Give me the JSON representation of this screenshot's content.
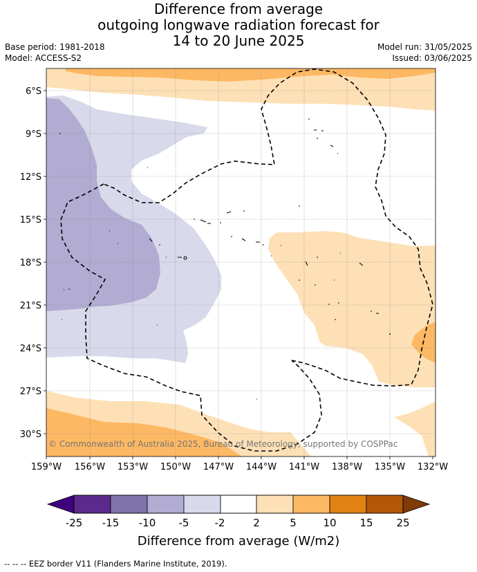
{
  "title": {
    "line1": "Difference from average",
    "line2": "outgoing longwave radiation forecast for",
    "line3": "14 to 20 June 2025"
  },
  "meta": {
    "base_period": "Base period: 1981-2018",
    "model": "Model: ACCESS-S2",
    "model_run": "Model run: 31/05/2025",
    "issued": "Issued: 03/06/2025"
  },
  "map": {
    "lon_ticks": [
      "159°W",
      "156°W",
      "153°W",
      "150°W",
      "147°W",
      "144°W",
      "141°W",
      "138°W",
      "135°W",
      "132°W"
    ],
    "lat_ticks": [
      "6°S",
      "9°S",
      "12°S",
      "15°S",
      "18°S",
      "21°S",
      "24°S",
      "27°S",
      "30°S"
    ],
    "copyright": "© Commonwealth of Australia 2025, Bureau of Meteorology, supported by COSPPac"
  },
  "colorbar": {
    "ticks": [
      "-25",
      "-15",
      "-10",
      "-5",
      "-2",
      "2",
      "5",
      "10",
      "15",
      "25"
    ],
    "colors": [
      "#3f007d",
      "#5b2a8c",
      "#8073ac",
      "#b2abd2",
      "#d8daeb",
      "#ffffff",
      "#fee0b6",
      "#fdb863",
      "#e08214",
      "#b35806",
      "#7f3b08"
    ],
    "label": "Difference from average (W/m2)"
  },
  "footnote": "--  --  -- EEZ border V11 (Flanders Marine Institute, 2019)."
}
